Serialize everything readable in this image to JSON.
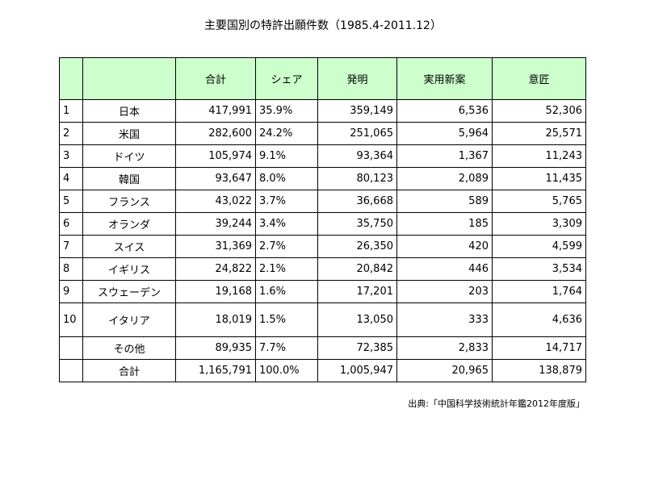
{
  "chart_data": {
    "type": "table",
    "title": "主要国別の特許出願件数（1985.4-2011.12）",
    "columns": [
      "",
      "",
      "合計",
      "シェア",
      "発明",
      "実用新案",
      "意匠"
    ],
    "rows": [
      {
        "rank": "1",
        "country": "日本",
        "total": "417,991",
        "share": "35.9%",
        "invention": "359,149",
        "utility": "6,536",
        "design": "52,306"
      },
      {
        "rank": "2",
        "country": "米国",
        "total": "282,600",
        "share": "24.2%",
        "invention": "251,065",
        "utility": "5,964",
        "design": "25,571"
      },
      {
        "rank": "3",
        "country": "ドイツ",
        "total": "105,974",
        "share": "9.1%",
        "invention": "93,364",
        "utility": "1,367",
        "design": "11,243"
      },
      {
        "rank": "4",
        "country": "韓国",
        "total": "93,647",
        "share": "8.0%",
        "invention": "80,123",
        "utility": "2,089",
        "design": "11,435"
      },
      {
        "rank": "5",
        "country": "フランス",
        "total": "43,022",
        "share": "3.7%",
        "invention": "36,668",
        "utility": "589",
        "design": "5,765"
      },
      {
        "rank": "6",
        "country": "オランダ",
        "total": "39,244",
        "share": "3.4%",
        "invention": "35,750",
        "utility": "185",
        "design": "3,309"
      },
      {
        "rank": "7",
        "country": "スイス",
        "total": "31,369",
        "share": "2.7%",
        "invention": "26,350",
        "utility": "420",
        "design": "4,599"
      },
      {
        "rank": "8",
        "country": "イギリス",
        "total": "24,822",
        "share": "2.1%",
        "invention": "20,842",
        "utility": "446",
        "design": "3,534"
      },
      {
        "rank": "9",
        "country": "スウェーデン",
        "total": "19,168",
        "share": "1.6%",
        "invention": "17,201",
        "utility": "203",
        "design": "1,764"
      },
      {
        "rank": "10",
        "country": "イタリア",
        "total": "18,019",
        "share": "1.5%",
        "invention": "13,050",
        "utility": "333",
        "design": "4,636"
      },
      {
        "rank": "",
        "country": "その他",
        "total": "89,935",
        "share": "7.7%",
        "invention": "72,385",
        "utility": "2,833",
        "design": "14,717"
      },
      {
        "rank": "",
        "country": "合計",
        "total": "1,165,791",
        "share": "100.0%",
        "invention": "1,005,947",
        "utility": "20,965",
        "design": "138,879"
      }
    ],
    "header_color": "#ccffcc"
  },
  "source": "出典:「中国科学技術統計年鑑2012年度版」"
}
